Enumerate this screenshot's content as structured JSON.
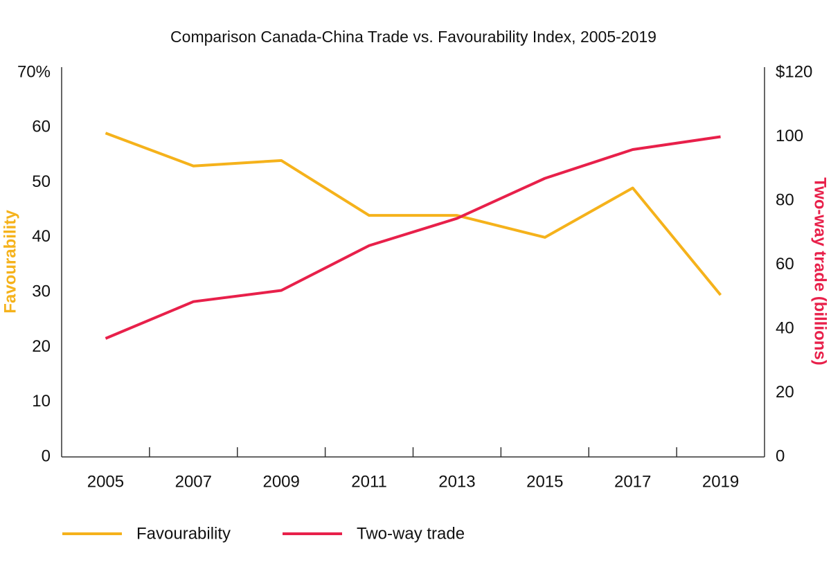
{
  "chart_data": {
    "type": "line",
    "title": "Comparison Canada-China Trade vs. Favourability Index, 2005-2019",
    "y_label": "Favourability",
    "y2_label": "Two-way trade (billions)",
    "categories": [
      "2005",
      "2007",
      "2009",
      "2011",
      "2013",
      "2015",
      "2017",
      "2019"
    ],
    "series": [
      {
        "name": "Favourability",
        "color": "#f5b21b",
        "values": [
          59,
          53,
          54,
          44,
          44,
          40,
          49,
          29.5
        ]
      },
      {
        "name": "Two-way trade",
        "color": "#e8204a",
        "axis": "y2",
        "values": [
          37,
          48.5,
          52,
          66,
          74.5,
          87,
          96,
          100
        ]
      }
    ],
    "ylim": [
      0,
      70
    ],
    "yticks": [
      0,
      10,
      20,
      30,
      40,
      50,
      60,
      {
        "value": 70,
        "label": "70%"
      }
    ],
    "y2lim": [
      0,
      120
    ],
    "y2ticks": [
      0,
      20,
      40,
      60,
      80,
      100,
      {
        "value": 120,
        "label": "$120"
      }
    ],
    "legend": "bottom"
  }
}
